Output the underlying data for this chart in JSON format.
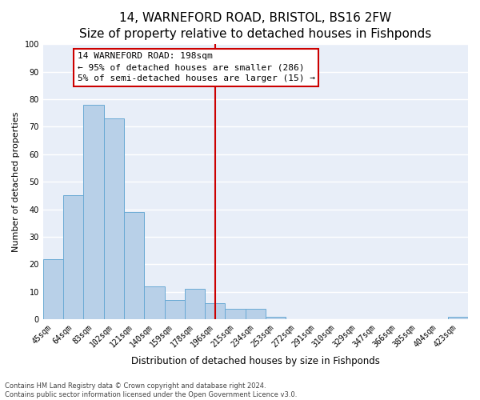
{
  "title": "14, WARNEFORD ROAD, BRISTOL, BS16 2FW",
  "subtitle": "Size of property relative to detached houses in Fishponds",
  "xlabel": "Distribution of detached houses by size in Fishponds",
  "ylabel": "Number of detached properties",
  "bar_labels": [
    "45sqm",
    "64sqm",
    "83sqm",
    "102sqm",
    "121sqm",
    "140sqm",
    "159sqm",
    "178sqm",
    "196sqm",
    "215sqm",
    "234sqm",
    "253sqm",
    "272sqm",
    "291sqm",
    "310sqm",
    "329sqm",
    "347sqm",
    "366sqm",
    "385sqm",
    "404sqm",
    "423sqm"
  ],
  "bar_heights": [
    22,
    45,
    78,
    73,
    39,
    12,
    7,
    11,
    6,
    4,
    4,
    1,
    0,
    0,
    0,
    0,
    0,
    0,
    0,
    0,
    1
  ],
  "bar_color": "#b8d0e8",
  "bar_edge_color": "#6aaad4",
  "vline_color": "#cc0000",
  "annotation_line1": "14 WARNEFORD ROAD: 198sqm",
  "annotation_line2": "← 95% of detached houses are smaller (286)",
  "annotation_line3": "5% of semi-detached houses are larger (15) →",
  "ylim": [
    0,
    100
  ],
  "yticks": [
    0,
    10,
    20,
    30,
    40,
    50,
    60,
    70,
    80,
    90,
    100
  ],
  "figure_bg": "#ffffff",
  "plot_bg": "#e8eef8",
  "grid_color": "#ffffff",
  "annotation_box_color": "#ffffff",
  "annotation_box_edge_color": "#cc0000",
  "footnote": "Contains HM Land Registry data © Crown copyright and database right 2024.\nContains public sector information licensed under the Open Government Licence v3.0.",
  "title_fontsize": 11,
  "subtitle_fontsize": 9.5,
  "axis_label_fontsize": 8,
  "tick_fontsize": 7,
  "annotation_fontsize": 8,
  "footnote_fontsize": 6
}
